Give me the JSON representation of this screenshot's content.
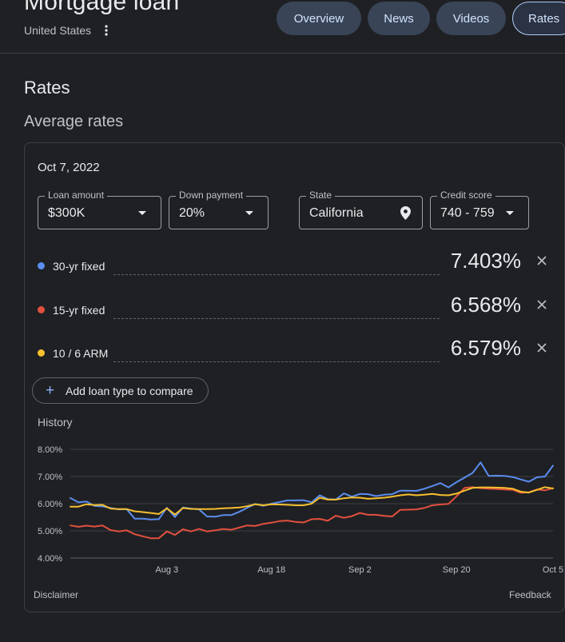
{
  "header": {
    "title": "Mortgage loan",
    "location": "United States",
    "more_icon": "more-vert-icon",
    "tabs": [
      {
        "label": "Overview",
        "active": false
      },
      {
        "label": "News",
        "active": false
      },
      {
        "label": "Videos",
        "active": false
      },
      {
        "label": "Rates",
        "active": true
      }
    ]
  },
  "section": {
    "title": "Rates",
    "subtitle": "Average rates"
  },
  "card": {
    "date": "Oct 7, 2022",
    "filters": {
      "loan_amount": {
        "label": "Loan amount",
        "value": "$300K"
      },
      "down_payment": {
        "label": "Down payment",
        "value": "20%"
      },
      "state": {
        "label": "State",
        "value": "California",
        "icon": "location-pin-icon"
      },
      "credit_score": {
        "label": "Credit score",
        "value": "740 - 759"
      }
    },
    "rates": [
      {
        "label": "30-yr fixed",
        "value": "7.403%",
        "color": "#5b8def"
      },
      {
        "label": "15-yr fixed",
        "value": "6.568%",
        "color": "#e2503f"
      },
      {
        "label": "10 / 6 ARM",
        "value": "6.579%",
        "color": "#f6c02f"
      }
    ],
    "add_button": {
      "label": "Add loan type to compare",
      "icon": "plus-icon"
    },
    "history_label": "History",
    "footer": {
      "disclaimer": "Disclaimer",
      "feedback": "Feedback"
    }
  },
  "chart_data": {
    "type": "line",
    "y_ticks": [
      "8.00%",
      "7.00%",
      "6.00%",
      "5.00%",
      "4.00%"
    ],
    "ylim": [
      4.0,
      8.0
    ],
    "x_ticks": [
      "Aug 3",
      "Aug 18",
      "Sep 2",
      "Sep 20",
      "Oct 5"
    ],
    "x_tick_index": [
      12,
      25,
      36,
      48,
      60
    ],
    "grid": true,
    "series": [
      {
        "name": "30-yr fixed",
        "color": "#5b8def",
        "values": [
          6.21,
          6.05,
          6.08,
          5.92,
          5.9,
          5.84,
          5.79,
          5.8,
          5.45,
          5.45,
          5.42,
          5.43,
          5.85,
          5.51,
          5.86,
          5.82,
          5.79,
          5.53,
          5.52,
          5.58,
          5.58,
          5.7,
          5.85,
          5.99,
          5.92,
          6.0,
          6.06,
          6.12,
          6.12,
          6.13,
          6.05,
          6.31,
          6.17,
          6.15,
          6.38,
          6.26,
          6.36,
          6.35,
          6.28,
          6.33,
          6.35,
          6.48,
          6.48,
          6.47,
          6.55,
          6.65,
          6.76,
          6.6,
          6.79,
          6.96,
          7.13,
          7.52,
          7.02,
          7.03,
          7.02,
          6.98,
          6.89,
          6.81,
          6.97,
          7.0,
          7.4
        ]
      },
      {
        "name": "15-yr fixed",
        "color": "#e2503f",
        "values": [
          5.2,
          5.15,
          5.19,
          5.16,
          5.2,
          5.03,
          4.98,
          5.02,
          4.88,
          4.8,
          4.73,
          4.73,
          4.98,
          4.85,
          5.06,
          4.98,
          5.07,
          4.98,
          5.02,
          5.07,
          5.04,
          5.12,
          5.2,
          5.18,
          5.26,
          5.3,
          5.36,
          5.38,
          5.33,
          5.31,
          5.43,
          5.44,
          5.37,
          5.56,
          5.48,
          5.54,
          5.66,
          5.59,
          5.59,
          5.55,
          5.53,
          5.77,
          5.78,
          5.79,
          5.84,
          5.94,
          5.97,
          5.99,
          6.27,
          6.58,
          6.61,
          6.57,
          6.55,
          6.54,
          6.52,
          6.51,
          6.4,
          6.42,
          6.52,
          6.49,
          6.57
        ]
      },
      {
        "name": "10 / 6 ARM",
        "color": "#f6c02f",
        "values": [
          5.89,
          5.89,
          5.98,
          5.95,
          5.96,
          5.82,
          5.8,
          5.8,
          5.72,
          5.69,
          5.66,
          5.62,
          5.83,
          5.6,
          5.84,
          5.81,
          5.8,
          5.8,
          5.81,
          5.83,
          5.84,
          5.86,
          5.91,
          5.98,
          5.94,
          5.98,
          5.97,
          5.96,
          5.94,
          5.94,
          6.0,
          6.22,
          6.15,
          6.15,
          6.2,
          6.23,
          6.22,
          6.18,
          6.2,
          6.22,
          6.26,
          6.31,
          6.34,
          6.31,
          6.33,
          6.36,
          6.32,
          6.31,
          6.37,
          6.48,
          6.58,
          6.6,
          6.6,
          6.59,
          6.58,
          6.55,
          6.44,
          6.41,
          6.51,
          6.61,
          6.56
        ]
      }
    ]
  }
}
